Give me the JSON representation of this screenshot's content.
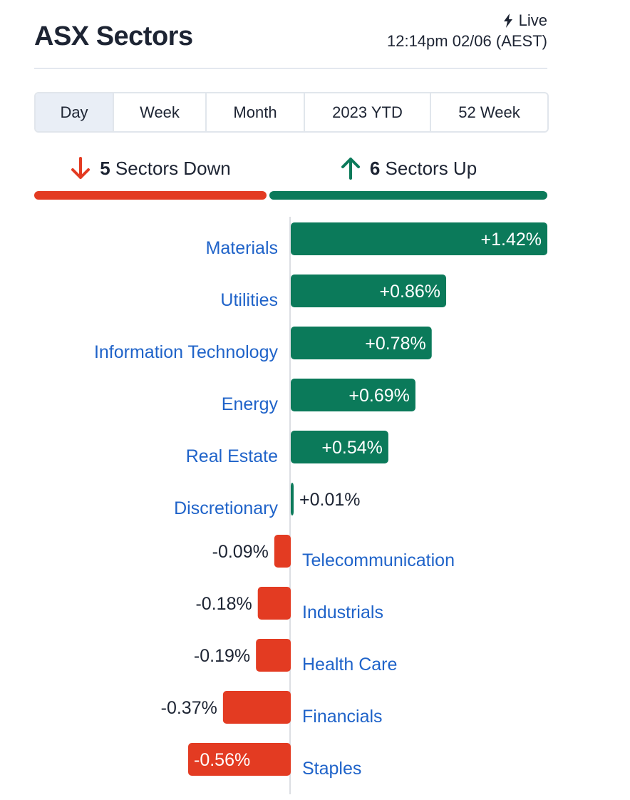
{
  "header": {
    "title": "ASX Sectors",
    "live_label": "Live",
    "timestamp": "12:14pm 02/06 (AEST)"
  },
  "tabs": [
    {
      "label": "Day",
      "active": true
    },
    {
      "label": "Week",
      "active": false
    },
    {
      "label": "Month",
      "active": false
    },
    {
      "label": "2023 YTD",
      "active": false
    },
    {
      "label": "52 Week",
      "active": false
    }
  ],
  "summary": {
    "down_count": "5",
    "down_text": "Sectors Down",
    "up_count": "6",
    "up_text": "Sectors Up"
  },
  "colors": {
    "positive": "#0b7a5a",
    "negative": "#e33b22",
    "category_text": "#1f63c9"
  },
  "chart_data": {
    "type": "bar",
    "orientation": "horizontal",
    "categories": [
      "Materials",
      "Utilities",
      "Information Technology",
      "Energy",
      "Real Estate",
      "Discretionary",
      "Telecommunication",
      "Industrials",
      "Health Care",
      "Financials",
      "Staples"
    ],
    "values": [
      1.42,
      0.86,
      0.78,
      0.69,
      0.54,
      0.01,
      -0.09,
      -0.18,
      -0.19,
      -0.37,
      -0.56
    ],
    "value_labels": [
      "+1.42%",
      "+0.86%",
      "+0.78%",
      "+0.69%",
      "+0.54%",
      "+0.01%",
      "-0.09%",
      "-0.18%",
      "-0.19%",
      "-0.37%",
      "-0.56%"
    ],
    "xlim": [
      -0.56,
      1.42
    ],
    "grid": false
  }
}
